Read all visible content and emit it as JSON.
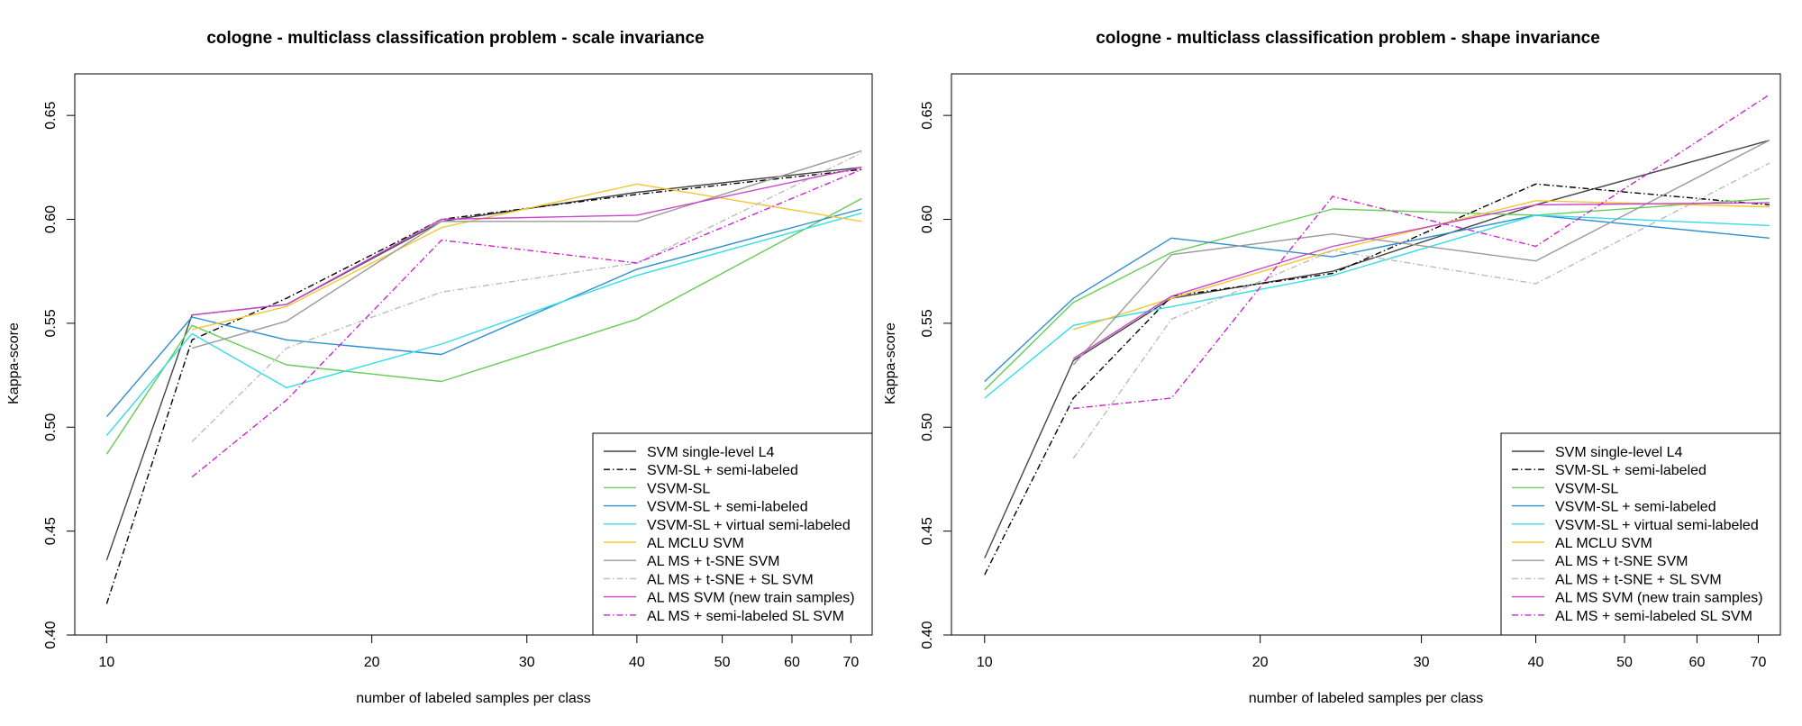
{
  "chart_data": [
    {
      "type": "line",
      "title": "cologne - multiclass classification problem - scale invariance",
      "xlabel": "number of labeled samples per class",
      "ylabel": "Kappa-score",
      "x_scale": "log",
      "xlim": [
        9.2,
        74
      ],
      "ylim": [
        0.4,
        0.67
      ],
      "x_ticks": [
        10,
        20,
        30,
        40,
        50,
        60,
        70
      ],
      "y_ticks": [
        0.4,
        0.45,
        0.5,
        0.55,
        0.6,
        0.65
      ],
      "y_tick_labels": [
        "0.40",
        "0.45",
        "0.50",
        "0.55",
        "0.60",
        "0.65"
      ],
      "legend_position": "bottom-right",
      "series": [
        {
          "name": "SVM single-level L4",
          "color": "#444444",
          "dash": "solid",
          "x": [
            10,
            12.5,
            16,
            24,
            40,
            72
          ],
          "y": [
            0.436,
            0.554,
            0.559,
            0.599,
            0.613,
            0.625
          ]
        },
        {
          "name": "SVM-SL + semi-labeled",
          "color": "#000000",
          "dash": "dashdot",
          "x": [
            10,
            12.5,
            16,
            24,
            40,
            72
          ],
          "y": [
            0.415,
            0.542,
            0.562,
            0.6,
            0.612,
            0.624
          ]
        },
        {
          "name": "VSVM-SL",
          "color": "#66cc55",
          "dash": "solid",
          "x": [
            10,
            12.5,
            16,
            24,
            40,
            72
          ],
          "y": [
            0.487,
            0.549,
            0.53,
            0.522,
            0.552,
            0.61
          ]
        },
        {
          "name": "VSVM-SL + semi-labeled",
          "color": "#2c8fd0",
          "dash": "solid",
          "x": [
            10,
            12.5,
            16,
            24,
            40,
            72
          ],
          "y": [
            0.505,
            0.553,
            0.542,
            0.535,
            0.576,
            0.605
          ]
        },
        {
          "name": "VSVM-SL + virtual semi-labeled",
          "color": "#33dde8",
          "dash": "solid",
          "x": [
            10,
            12.5,
            16,
            24,
            40,
            72
          ],
          "y": [
            0.496,
            0.545,
            0.519,
            0.54,
            0.573,
            0.603
          ]
        },
        {
          "name": "AL MCLU SVM",
          "color": "#f0c830",
          "dash": "solid",
          "x": [
            12.5,
            16,
            24,
            40,
            72
          ],
          "y": [
            0.547,
            0.558,
            0.596,
            0.617,
            0.599
          ]
        },
        {
          "name": "AL MS + t-SNE SVM",
          "color": "#999999",
          "dash": "solid",
          "x": [
            12.5,
            16,
            24,
            40,
            72
          ],
          "y": [
            0.538,
            0.551,
            0.599,
            0.599,
            0.633
          ]
        },
        {
          "name": "AL MS + t-SNE + SL SVM",
          "color": "#bbbbbb",
          "dash": "dashdot",
          "x": [
            12.5,
            16,
            24,
            40,
            72
          ],
          "y": [
            0.493,
            0.538,
            0.565,
            0.579,
            0.632
          ]
        },
        {
          "name": "AL MS SVM (new train samples)",
          "color": "#cc44cc",
          "dash": "solid",
          "x": [
            12.5,
            16,
            24,
            40,
            72
          ],
          "y": [
            0.554,
            0.559,
            0.6,
            0.602,
            0.625
          ]
        },
        {
          "name": "AL MS + semi-labeled SL SVM",
          "color": "#cc22cc",
          "dash": "dashdot",
          "x": [
            12.5,
            16,
            24,
            40,
            72
          ],
          "y": [
            0.476,
            0.513,
            0.59,
            0.579,
            0.624
          ]
        }
      ]
    },
    {
      "type": "line",
      "title": "cologne - multiclass classification problem - shape invariance",
      "xlabel": "number of labeled samples per class",
      "ylabel": "Kappa-score",
      "x_scale": "log",
      "xlim": [
        9.2,
        74
      ],
      "ylim": [
        0.4,
        0.67
      ],
      "x_ticks": [
        10,
        20,
        30,
        40,
        50,
        60,
        70
      ],
      "y_ticks": [
        0.4,
        0.45,
        0.5,
        0.55,
        0.6,
        0.65
      ],
      "y_tick_labels": [
        "0.40",
        "0.45",
        "0.50",
        "0.55",
        "0.60",
        "0.65"
      ],
      "legend_position": "bottom-right",
      "series": [
        {
          "name": "SVM single-level L4",
          "color": "#444444",
          "dash": "solid",
          "x": [
            10,
            12.5,
            16,
            24,
            40,
            72
          ],
          "y": [
            0.437,
            0.532,
            0.562,
            0.575,
            0.607,
            0.638
          ]
        },
        {
          "name": "SVM-SL + semi-labeled",
          "color": "#000000",
          "dash": "dashdot",
          "x": [
            10,
            12.5,
            16,
            24,
            40,
            72
          ],
          "y": [
            0.429,
            0.514,
            0.563,
            0.574,
            0.617,
            0.607
          ]
        },
        {
          "name": "VSVM-SL",
          "color": "#66cc55",
          "dash": "solid",
          "x": [
            10,
            12.5,
            16,
            24,
            40,
            72
          ],
          "y": [
            0.518,
            0.56,
            0.584,
            0.605,
            0.602,
            0.61
          ]
        },
        {
          "name": "VSVM-SL + semi-labeled",
          "color": "#2c8fd0",
          "dash": "solid",
          "x": [
            10,
            12.5,
            16,
            24,
            40,
            72
          ],
          "y": [
            0.522,
            0.562,
            0.591,
            0.582,
            0.602,
            0.591
          ]
        },
        {
          "name": "VSVM-SL + virtual semi-labeled",
          "color": "#33dde8",
          "dash": "solid",
          "x": [
            10,
            12.5,
            16,
            24,
            40,
            72
          ],
          "y": [
            0.514,
            0.549,
            0.558,
            0.573,
            0.602,
            0.597
          ]
        },
        {
          "name": "AL MCLU SVM",
          "color": "#f0c830",
          "dash": "solid",
          "x": [
            12.5,
            16,
            24,
            40,
            72
          ],
          "y": [
            0.547,
            0.562,
            0.585,
            0.609,
            0.606
          ]
        },
        {
          "name": "AL MS + t-SNE SVM",
          "color": "#999999",
          "dash": "solid",
          "x": [
            12.5,
            16,
            24,
            40,
            72
          ],
          "y": [
            0.53,
            0.583,
            0.593,
            0.58,
            0.638
          ]
        },
        {
          "name": "AL MS + t-SNE + SL SVM",
          "color": "#bbbbbb",
          "dash": "dashdot",
          "x": [
            12.5,
            16,
            24,
            40,
            72
          ],
          "y": [
            0.485,
            0.552,
            0.585,
            0.569,
            0.627
          ]
        },
        {
          "name": "AL MS SVM (new train samples)",
          "color": "#cc44cc",
          "dash": "solid",
          "x": [
            12.5,
            16,
            24,
            40,
            72
          ],
          "y": [
            0.533,
            0.563,
            0.587,
            0.607,
            0.608
          ]
        },
        {
          "name": "AL MS + semi-labeled SL SVM",
          "color": "#cc22cc",
          "dash": "dashdot",
          "x": [
            12.5,
            16,
            24,
            40,
            72
          ],
          "y": [
            0.509,
            0.514,
            0.611,
            0.587,
            0.66
          ]
        }
      ]
    }
  ]
}
